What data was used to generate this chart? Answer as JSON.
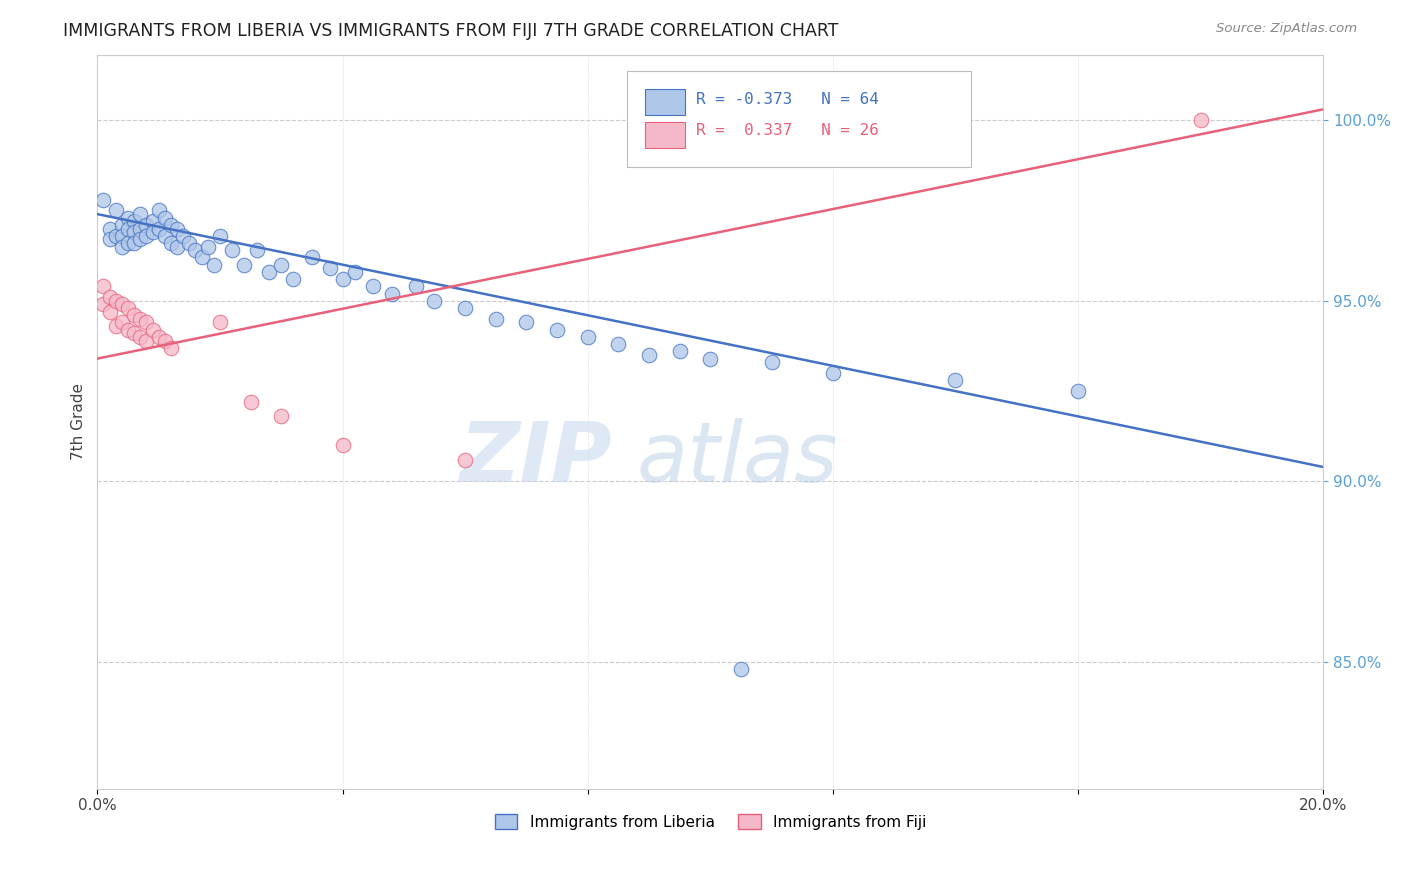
{
  "title": "IMMIGRANTS FROM LIBERIA VS IMMIGRANTS FROM FIJI 7TH GRADE CORRELATION CHART",
  "source": "Source: ZipAtlas.com",
  "ylabel_label": "7th Grade",
  "xlim": [
    0.0,
    0.2
  ],
  "ylim": [
    0.815,
    1.018
  ],
  "xticks": [
    0.0,
    0.04,
    0.08,
    0.12,
    0.16,
    0.2
  ],
  "ytick_positions_right": [
    1.0,
    0.95,
    0.9,
    0.85
  ],
  "ytick_labels_right": [
    "100.0%",
    "95.0%",
    "90.0%",
    "85.0%"
  ],
  "blue_R": -0.373,
  "blue_N": 64,
  "pink_R": 0.337,
  "pink_N": 26,
  "blue_color": "#aec6e8",
  "pink_color": "#f5b8c8",
  "blue_line_color": "#4472c4",
  "pink_line_color": "#e8607a",
  "legend_blue_label": "Immigrants from Liberia",
  "legend_pink_label": "Immigrants from Fiji",
  "blue_x": [
    0.001,
    0.002,
    0.002,
    0.003,
    0.003,
    0.004,
    0.004,
    0.004,
    0.005,
    0.005,
    0.005,
    0.006,
    0.006,
    0.006,
    0.007,
    0.007,
    0.007,
    0.008,
    0.008,
    0.009,
    0.009,
    0.01,
    0.01,
    0.011,
    0.011,
    0.012,
    0.012,
    0.013,
    0.013,
    0.014,
    0.015,
    0.016,
    0.017,
    0.018,
    0.019,
    0.02,
    0.022,
    0.024,
    0.026,
    0.028,
    0.03,
    0.032,
    0.035,
    0.038,
    0.04,
    0.042,
    0.045,
    0.048,
    0.052,
    0.055,
    0.06,
    0.065,
    0.07,
    0.075,
    0.08,
    0.085,
    0.09,
    0.095,
    0.1,
    0.11,
    0.12,
    0.14,
    0.16,
    0.105
  ],
  "blue_y": [
    0.978,
    0.97,
    0.967,
    0.968,
    0.975,
    0.971,
    0.968,
    0.965,
    0.973,
    0.97,
    0.966,
    0.972,
    0.969,
    0.966,
    0.974,
    0.97,
    0.967,
    0.971,
    0.968,
    0.972,
    0.969,
    0.975,
    0.97,
    0.973,
    0.968,
    0.971,
    0.966,
    0.97,
    0.965,
    0.968,
    0.966,
    0.964,
    0.962,
    0.965,
    0.96,
    0.968,
    0.964,
    0.96,
    0.964,
    0.958,
    0.96,
    0.956,
    0.962,
    0.959,
    0.956,
    0.958,
    0.954,
    0.952,
    0.954,
    0.95,
    0.948,
    0.945,
    0.944,
    0.942,
    0.94,
    0.938,
    0.935,
    0.936,
    0.934,
    0.933,
    0.93,
    0.928,
    0.925,
    0.848
  ],
  "pink_x": [
    0.001,
    0.001,
    0.002,
    0.002,
    0.003,
    0.003,
    0.004,
    0.004,
    0.005,
    0.005,
    0.006,
    0.006,
    0.007,
    0.007,
    0.008,
    0.008,
    0.009,
    0.01,
    0.011,
    0.012,
    0.02,
    0.025,
    0.03,
    0.04,
    0.06,
    0.18
  ],
  "pink_y": [
    0.954,
    0.949,
    0.951,
    0.947,
    0.95,
    0.943,
    0.949,
    0.944,
    0.948,
    0.942,
    0.946,
    0.941,
    0.945,
    0.94,
    0.944,
    0.939,
    0.942,
    0.94,
    0.939,
    0.937,
    0.944,
    0.922,
    0.918,
    0.91,
    0.906,
    1.0
  ],
  "blue_line_x0": 0.0,
  "blue_line_y0": 0.974,
  "blue_line_x1": 0.2,
  "blue_line_y1": 0.904,
  "pink_line_x0": 0.0,
  "pink_line_y0": 0.934,
  "pink_line_x1": 0.2,
  "pink_line_y1": 1.003,
  "watermark_zip": "ZIP",
  "watermark_atlas": "atlas",
  "background_color": "#ffffff",
  "grid_color": "#cccccc"
}
